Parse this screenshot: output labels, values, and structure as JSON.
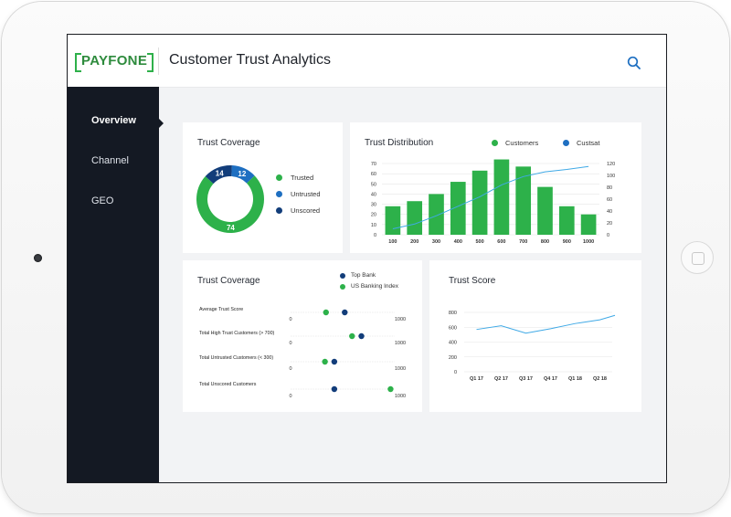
{
  "colors": {
    "green": "#2db14a",
    "blue": "#1e6fc1",
    "navy": "#123d7a",
    "sidebar_bg": "#141923",
    "line_blue": "#3fa9e6"
  },
  "header": {
    "logo": "PAYFONE",
    "title": "Customer Trust Analytics",
    "search_icon": "search-icon"
  },
  "sidebar": {
    "items": [
      {
        "label": "Overview",
        "active": true
      },
      {
        "label": "Channel",
        "active": false
      },
      {
        "label": "GEO",
        "active": false
      }
    ]
  },
  "trust_coverage_donut": {
    "title": "Trust Coverage",
    "legend": [
      "Trusted",
      "Untrusted",
      "Unscored"
    ]
  },
  "trust_distribution": {
    "title": "Trust Distribution",
    "legend": [
      "Customers",
      "Custsat"
    ]
  },
  "trust_coverage_dots": {
    "title": "Trust Coverage",
    "legend": [
      "Top Bank",
      "US Banking Index"
    ],
    "scale_min_label": "0",
    "scale_max_label": "1000"
  },
  "trust_score": {
    "title": "Trust Score"
  },
  "chart_data": [
    {
      "type": "pie",
      "title": "Trust Coverage",
      "categories": [
        "Trusted",
        "Untrusted",
        "Unscored"
      ],
      "values": [
        74,
        12,
        14
      ],
      "colors": [
        "#2db14a",
        "#1e6fc1",
        "#123d7a"
      ]
    },
    {
      "type": "bar",
      "title": "Trust Distribution",
      "categories": [
        "100",
        "200",
        "300",
        "400",
        "500",
        "600",
        "700",
        "800",
        "900",
        "1000"
      ],
      "series": [
        {
          "name": "Customers",
          "type": "bar",
          "axis": "left",
          "values": [
            28,
            33,
            40,
            52,
            63,
            74,
            67,
            47,
            28,
            20
          ]
        },
        {
          "name": "Custsat",
          "type": "line",
          "axis": "right",
          "values": [
            10,
            18,
            32,
            48,
            64,
            84,
            98,
            106,
            110,
            115
          ]
        }
      ],
      "ylim": [
        0,
        70
      ],
      "yticks": [
        0,
        10,
        20,
        30,
        40,
        50,
        60,
        70
      ],
      "y2lim": [
        0,
        120
      ],
      "y2ticks": [
        0,
        20,
        40,
        60,
        80,
        100,
        120
      ]
    },
    {
      "type": "scatter",
      "title": "Trust Coverage",
      "xlim": [
        0,
        1000
      ],
      "rows": [
        {
          "label": "Average Trust Score",
          "Top Bank": 520,
          "US Banking Index": 340
        },
        {
          "label": "Total High Trust Customers (> 700)",
          "Top Bank": 680,
          "US Banking Index": 590
        },
        {
          "label": "Total Untrusted Customers (< 300)",
          "Top Bank": 420,
          "US Banking Index": 330
        },
        {
          "label": "Total Unscored Customers",
          "Top Bank": 420,
          "US Banking Index": 960
        }
      ]
    },
    {
      "type": "line",
      "title": "Trust Score",
      "categories": [
        "Q1 17",
        "Q2 17",
        "Q3 17",
        "Q4 17",
        "Q1 18",
        "Q2 18"
      ],
      "series": [
        {
          "values": [
            570,
            620,
            520,
            580,
            650,
            700
          ]
        }
      ],
      "extra_endpoint": 760,
      "ylim": [
        0,
        800
      ],
      "yticks": [
        0,
        200,
        400,
        600,
        800
      ]
    }
  ]
}
